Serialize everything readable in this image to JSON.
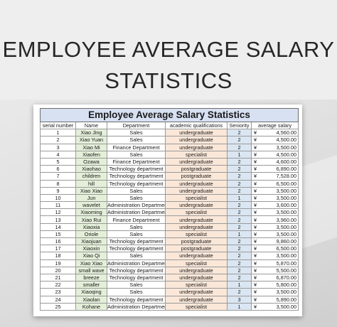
{
  "headline": {
    "line1": "EMPLOYEE AVERAGE SALARY",
    "line2": "STATISTICS"
  },
  "sheet": {
    "title": "Employee Average Salary Statistics",
    "columns": [
      "serial number",
      "Name",
      "Department",
      "academic qualifications",
      "Seniority",
      "average salary"
    ],
    "currency_symbol": "¥",
    "colors": {
      "title_bg": "#d7e1f2",
      "name_bg": "#e4efd9",
      "qualification_bg": "#fae7d8",
      "seniority_bg": "#dae6f2"
    },
    "rows": [
      {
        "serial": "1",
        "name": "Xiao Jing",
        "dept": "Sales",
        "qual": "undergraduate",
        "seniority": "2",
        "salary": "4,560.00"
      },
      {
        "serial": "2",
        "name": "Xiao Yuan",
        "dept": "Sales",
        "qual": "undergraduate",
        "seniority": "2",
        "salary": "4,500.00"
      },
      {
        "serial": "3",
        "name": "Xiao Mi",
        "dept": "Finance Department",
        "qual": "undergraduate",
        "seniority": "2",
        "salary": "3,500.00"
      },
      {
        "serial": "4",
        "name": "Xiaofen",
        "dept": "Sales",
        "qual": "specialist",
        "seniority": "1",
        "salary": "4,500.00"
      },
      {
        "serial": "5",
        "name": "Ozawa",
        "dept": "Finance Department",
        "qual": "undergraduate",
        "seniority": "2",
        "salary": "4,600.00"
      },
      {
        "serial": "6",
        "name": "Xiaohao",
        "dept": "Technology department",
        "qual": "postgraduate",
        "seniority": "2",
        "salary": "6,890.00"
      },
      {
        "serial": "7",
        "name": "children",
        "dept": "Technology department",
        "qual": "postgraduate",
        "seniority": "2",
        "salary": "7,528.00"
      },
      {
        "serial": "8",
        "name": "hill",
        "dept": "Technology department",
        "qual": "undergraduate",
        "seniority": "2",
        "salary": "6,500.00"
      },
      {
        "serial": "9",
        "name": "Xiao Xiao",
        "dept": "Sales",
        "qual": "undergraduate",
        "seniority": "2",
        "salary": "3,500.00"
      },
      {
        "serial": "10",
        "name": "Jun",
        "dept": "Sales",
        "qual": "specialist",
        "seniority": "1",
        "salary": "3,500.00"
      },
      {
        "serial": "11",
        "name": "wavelet",
        "dept": "Administration Department",
        "qual": "undergraduate",
        "seniority": "2",
        "salary": "3,600.00"
      },
      {
        "serial": "12",
        "name": "Xiaoming",
        "dept": "Administration Department",
        "qual": "specialist",
        "seniority": "2",
        "salary": "3,500.00"
      },
      {
        "serial": "13",
        "name": "Xiao Rui",
        "dept": "Finance Department",
        "qual": "undergraduate",
        "seniority": "2",
        "salary": "3,960.00"
      },
      {
        "serial": "14",
        "name": "Xiaoxia",
        "dept": "Sales",
        "qual": "undergraduate",
        "seniority": "2",
        "salary": "3,500.00"
      },
      {
        "serial": "15",
        "name": "Oriole",
        "dept": "Sales",
        "qual": "specialist",
        "seniority": "1",
        "salary": "3,500.00"
      },
      {
        "serial": "16",
        "name": "Xiaojuan",
        "dept": "Technology department",
        "qual": "postgraduate",
        "seniority": "2",
        "salary": "9,860.00"
      },
      {
        "serial": "17",
        "name": "Xiaoxin",
        "dept": "Technology department",
        "qual": "postgraduate",
        "seniority": "2",
        "salary": "6,500.00"
      },
      {
        "serial": "18",
        "name": "Xiao Qi",
        "dept": "Sales",
        "qual": "undergraduate",
        "seniority": "2",
        "salary": "3,500.00"
      },
      {
        "serial": "19",
        "name": "Xiao Xiao",
        "dept": "Administration Department",
        "qual": "specialist",
        "seniority": "2",
        "salary": "5,870.00"
      },
      {
        "serial": "20",
        "name": "small wave",
        "dept": "Technology department",
        "qual": "undergraduate",
        "seniority": "2",
        "salary": "5,500.00"
      },
      {
        "serial": "21",
        "name": "breeze",
        "dept": "Technology department",
        "qual": "undergraduate",
        "seniority": "2",
        "salary": "6,870.00"
      },
      {
        "serial": "22",
        "name": "smaller",
        "dept": "Sales",
        "qual": "specialist",
        "seniority": "1",
        "salary": "5,800.00"
      },
      {
        "serial": "23",
        "name": "Xiaoqing",
        "dept": "Sales",
        "qual": "undergraduate",
        "seniority": "2",
        "salary": "3,500.00"
      },
      {
        "serial": "24",
        "name": "Xiaolan",
        "dept": "Technology department",
        "qual": "undergraduate",
        "seniority": "3",
        "salary": "5,890.00"
      },
      {
        "serial": "25",
        "name": "Kohane",
        "dept": "Administration Department",
        "qual": "specialist",
        "seniority": "1",
        "salary": "3,500.00"
      }
    ]
  }
}
